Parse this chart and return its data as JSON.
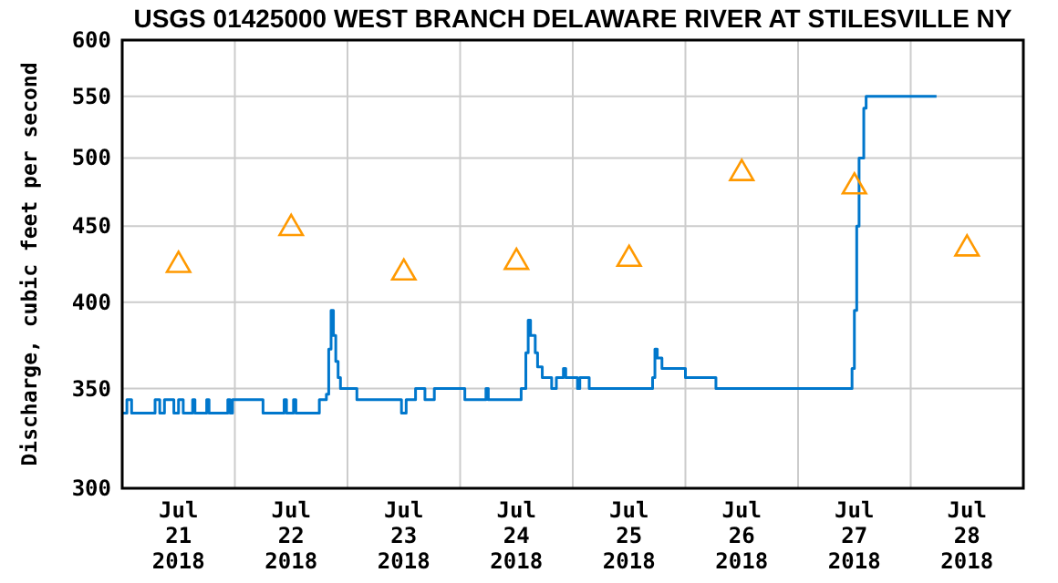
{
  "chart_data": {
    "type": "line",
    "title": "USGS 01425000 WEST BRANCH DELAWARE RIVER AT STILESVILLE NY",
    "ylabel": "Discharge, cubic feet per second",
    "log": "y",
    "grid": true,
    "ylim": [
      300,
      600
    ],
    "yticks": [
      300,
      350,
      400,
      450,
      500,
      550,
      600
    ],
    "xlim": [
      "2018-07-21T00:00",
      "2018-07-29T00:00"
    ],
    "xticks": [
      {
        "value": "2018-07-21T12:00",
        "label": "Jul\n21\n2018"
      },
      {
        "value": "2018-07-22T00:00",
        "label": null
      },
      {
        "value": "2018-07-22T12:00",
        "label": "Jul\n22\n2018"
      },
      {
        "value": "2018-07-23T00:00",
        "label": null
      },
      {
        "value": "2018-07-23T12:00",
        "label": "Jul\n23\n2018"
      },
      {
        "value": "2018-07-24T00:00",
        "label": null
      },
      {
        "value": "2018-07-24T12:00",
        "label": "Jul\n24\n2018"
      },
      {
        "value": "2018-07-25T00:00",
        "label": null
      },
      {
        "value": "2018-07-25T12:00",
        "label": "Jul\n25\n2018"
      },
      {
        "value": "2018-07-26T00:00",
        "label": null
      },
      {
        "value": "2018-07-26T12:00",
        "label": "Jul\n26\n2018"
      },
      {
        "value": "2018-07-27T00:00",
        "label": null
      },
      {
        "value": "2018-07-27T12:00",
        "label": "Jul\n27\n2018"
      },
      {
        "value": "2018-07-28T00:00",
        "label": null
      },
      {
        "value": "2018-07-28T12:00",
        "label": "Jul\n28\n2018"
      }
    ],
    "series": [
      {
        "type": "step",
        "color": "#0077cc",
        "x": [
          "2018-07-21T00:00",
          "2018-07-21T01:00",
          "2018-07-21T02:00",
          "2018-07-21T07:00",
          "2018-07-21T08:00",
          "2018-07-21T09:00",
          "2018-07-21T11:00",
          "2018-07-21T12:00",
          "2018-07-21T13:00",
          "2018-07-21T15:00",
          "2018-07-21T15:30",
          "2018-07-21T18:00",
          "2018-07-21T18:30",
          "2018-07-21T22:30",
          "2018-07-21T23:00",
          "2018-07-21T23:30",
          "2018-07-22T06:00",
          "2018-07-22T10:30",
          "2018-07-22T11:00",
          "2018-07-22T12:30",
          "2018-07-22T13:00",
          "2018-07-22T18:00",
          "2018-07-22T19:30",
          "2018-07-22T20:00",
          "2018-07-22T20:30",
          "2018-07-22T21:00",
          "2018-07-22T21:30",
          "2018-07-22T22:00",
          "2018-07-22T22:30",
          "2018-07-23T02:00",
          "2018-07-23T11:30",
          "2018-07-23T12:30",
          "2018-07-23T14:30",
          "2018-07-23T16:30",
          "2018-07-23T18:30",
          "2018-07-24T01:00",
          "2018-07-24T05:30",
          "2018-07-24T06:00",
          "2018-07-24T13:00",
          "2018-07-24T14:00",
          "2018-07-24T14:30",
          "2018-07-24T15:00",
          "2018-07-24T16:00",
          "2018-07-24T16:30",
          "2018-07-24T17:30",
          "2018-07-24T19:30",
          "2018-07-24T20:30",
          "2018-07-24T22:00",
          "2018-07-24T22:30",
          "2018-07-25T01:00",
          "2018-07-25T01:30",
          "2018-07-25T03:30",
          "2018-07-25T17:00",
          "2018-07-25T17:30",
          "2018-07-25T18:00",
          "2018-07-25T19:00",
          "2018-07-26T00:00",
          "2018-07-26T06:30",
          "2018-07-27T11:30",
          "2018-07-27T12:00",
          "2018-07-27T12:30",
          "2018-07-27T13:00",
          "2018-07-27T14:00",
          "2018-07-27T14:30",
          "2018-07-28T05:30"
        ],
        "values": [
          337,
          344,
          337,
          344,
          337,
          344,
          337,
          344,
          337,
          344,
          337,
          344,
          337,
          344,
          337,
          344,
          337,
          344,
          337,
          344,
          337,
          344,
          347,
          372,
          395,
          380,
          365,
          356,
          350,
          344,
          337,
          344,
          350,
          344,
          350,
          344,
          350,
          344,
          350,
          370,
          389,
          380,
          370,
          362,
          356,
          350,
          356,
          361,
          356,
          350,
          356,
          350,
          356,
          372,
          367,
          361,
          356,
          350,
          361,
          395,
          450,
          500,
          540,
          550,
          550
        ]
      },
      {
        "type": "scatter",
        "marker": "triangle",
        "color": "#ff9900",
        "x": [
          "2018-07-21T12:00",
          "2018-07-22T12:00",
          "2018-07-23T12:00",
          "2018-07-24T12:00",
          "2018-07-25T12:00",
          "2018-07-26T12:00",
          "2018-07-27T12:00",
          "2018-07-28T12:00"
        ],
        "values": [
          426,
          451,
          421,
          428,
          430,
          491,
          481,
          437
        ]
      }
    ]
  }
}
